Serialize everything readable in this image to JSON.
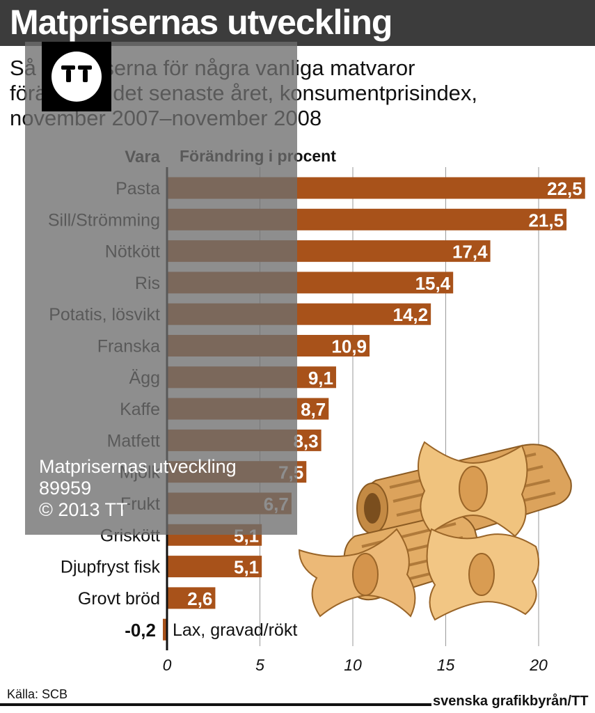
{
  "header": {
    "title": "Matprisernas utveckling",
    "subtitle_lines": [
      "Så har priserna för några vanliga matvaror",
      "förändrats det senaste året, konsumentprisindex,",
      "november 2007–november 2008"
    ]
  },
  "chart_data": {
    "type": "bar",
    "orientation": "horizontal",
    "category_header": "Vara",
    "value_header": "Förändring i procent",
    "categories": [
      "Pasta",
      "Sill/Strömming",
      "Nötkött",
      "Ris",
      "Potatis, lösvikt",
      "Franska",
      "Ägg",
      "Kaffe",
      "Matfett",
      "Mjölk",
      "Frukt",
      "Griskött",
      "Djupfryst fisk",
      "Grovt bröd",
      "Lax, gravad/rökt"
    ],
    "values": [
      22.5,
      21.5,
      17.4,
      15.4,
      14.2,
      10.9,
      9.1,
      8.7,
      8.3,
      7.5,
      6.7,
      5.1,
      5.1,
      2.6,
      -0.2
    ],
    "value_labels": [
      "22,5",
      "21,5",
      "17,4",
      "15,4",
      "14,2",
      "10,9",
      "9,1",
      "8,7",
      "8,3",
      "7,5",
      "6,7",
      "5,1",
      "5,1",
      "2,6",
      "-0,2"
    ],
    "x_ticks": [
      0,
      5,
      10,
      15,
      20
    ],
    "x_tick_labels": [
      "0",
      "5",
      "10",
      "15",
      "20"
    ],
    "xlim": [
      -0.2,
      22.5
    ],
    "grid": true,
    "bar_color": "#a8521a"
  },
  "footer": {
    "source": "Källa: SCB",
    "credit": "svenska grafikbyrån/TT"
  },
  "watermark": {
    "lines": [
      "Matprisernas utveckling",
      "89959",
      "© 2013 TT"
    ]
  },
  "illustration": {
    "icon": "pasta-illustration",
    "color": "#e8b46a"
  }
}
